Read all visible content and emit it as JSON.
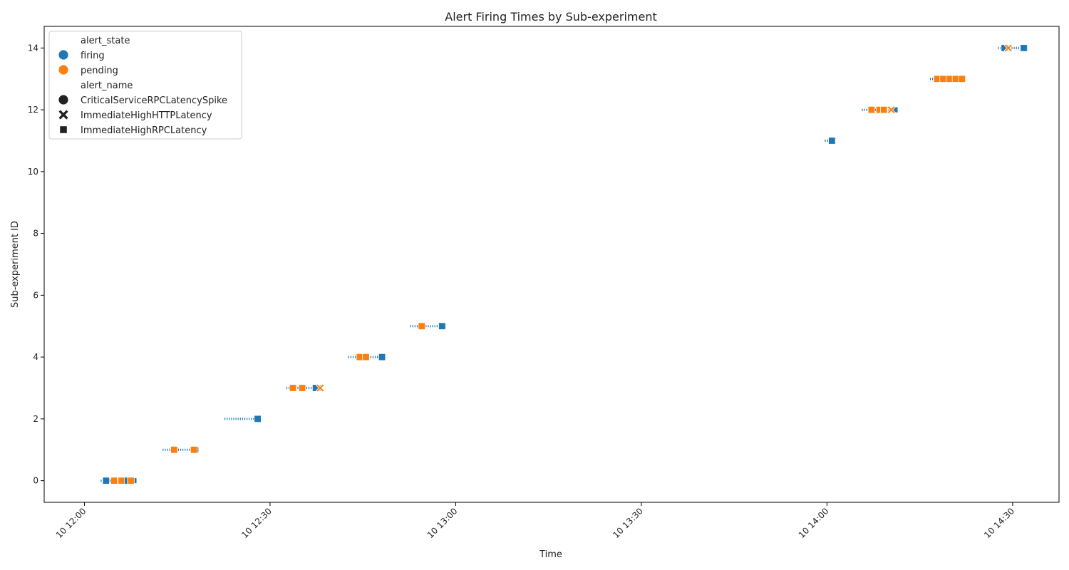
{
  "chart_data": {
    "type": "scatter",
    "title": "Alert Firing Times by Sub-experiment",
    "xlabel": "Time",
    "ylabel": "Sub-experiment ID",
    "x_axis_kind": "time",
    "x_range": [
      "12:00",
      "14:30"
    ],
    "x_limits_minutes": [
      -6.5,
      157.5
    ],
    "x_ticks": [
      {
        "minute": 0,
        "label": "10 12:00"
      },
      {
        "minute": 30,
        "label": "10 12:30"
      },
      {
        "minute": 60,
        "label": "10 13:00"
      },
      {
        "minute": 90,
        "label": "10 13:30"
      },
      {
        "minute": 120,
        "label": "10 14:00"
      },
      {
        "minute": 150,
        "label": "10 14:30"
      }
    ],
    "ylim": [
      -0.7,
      14.7
    ],
    "y_ticks": [
      0,
      2,
      4,
      6,
      8,
      10,
      12,
      14
    ],
    "grid": false,
    "legend": {
      "placement": "top-left",
      "state_title": "alert_state",
      "name_title": "alert_name",
      "states": [
        {
          "label": "firing",
          "color": "#1f77b4"
        },
        {
          "label": "pending",
          "color": "#ff7f0e"
        }
      ],
      "names": [
        {
          "label": "CriticalServiceRPCLatencySpike",
          "marker": "circle"
        },
        {
          "label": "ImmediateHighHTTPLatency",
          "marker": "x"
        },
        {
          "label": "ImmediateHighRPCLatency",
          "marker": "square"
        }
      ]
    },
    "groups": [
      {
        "id": 0,
        "start": "12:03",
        "end": "12:08",
        "points": [
          [
            "12:03.5",
            "firing",
            "square"
          ],
          [
            "12:04.8",
            "pending",
            "square"
          ],
          [
            "12:06.0",
            "pending",
            "square"
          ],
          [
            "12:07.0",
            "firing",
            "square"
          ],
          [
            "12:07.5",
            "pending",
            "square"
          ]
        ]
      },
      {
        "id": 1,
        "start": "12:13",
        "end": "12:18",
        "points": [
          [
            "12:14.5",
            "pending",
            "square"
          ],
          [
            "12:17.7",
            "pending",
            "square"
          ]
        ]
      },
      {
        "id": 2,
        "start": "12:23",
        "end": "12:28",
        "points": [
          [
            "12:28.0",
            "firing",
            "square"
          ]
        ]
      },
      {
        "id": 3,
        "start": "12:33",
        "end": "12:38",
        "points": [
          [
            "12:33.7",
            "pending",
            "square"
          ],
          [
            "12:35.2",
            "pending",
            "square"
          ],
          [
            "12:37.4",
            "firing",
            "square"
          ],
          [
            "12:38.1",
            "pending",
            "x"
          ]
        ]
      },
      {
        "id": 4,
        "start": "12:43",
        "end": "12:48",
        "points": [
          [
            "12:44.5",
            "pending",
            "square"
          ],
          [
            "12:45.5",
            "pending",
            "square"
          ],
          [
            "12:48.1",
            "firing",
            "square"
          ]
        ]
      },
      {
        "id": 5,
        "start": "12:53",
        "end": "12:58",
        "points": [
          [
            "12:54.5",
            "pending",
            "square"
          ],
          [
            "12:57.8",
            "firing",
            "square"
          ]
        ]
      },
      {
        "id": 11,
        "start": "14:00",
        "end": "14:01",
        "points": [
          [
            "14:00.8",
            "firing",
            "square"
          ]
        ]
      },
      {
        "id": 12,
        "start": "14:06",
        "end": "14:11",
        "points": [
          [
            "14:07.2",
            "pending",
            "square"
          ],
          [
            "14:08.5",
            "pending",
            "square"
          ],
          [
            "14:09.2",
            "pending",
            "square"
          ],
          [
            "14:10.4",
            "pending",
            "x"
          ]
        ]
      },
      {
        "id": 13,
        "start": "14:17",
        "end": "14:22",
        "points": [
          [
            "14:17.8",
            "pending",
            "square"
          ],
          [
            "14:18.8",
            "pending",
            "square"
          ],
          [
            "14:19.8",
            "pending",
            "square"
          ],
          [
            "14:20.8",
            "pending",
            "square"
          ],
          [
            "14:21.8",
            "pending",
            "square"
          ]
        ]
      },
      {
        "id": 14,
        "start": "14:28",
        "end": "14:32",
        "points": [
          [
            "14:28.7",
            "firing",
            "square"
          ],
          [
            "14:29.3",
            "pending",
            "x"
          ],
          [
            "14:31.8",
            "firing",
            "square"
          ]
        ]
      }
    ]
  }
}
